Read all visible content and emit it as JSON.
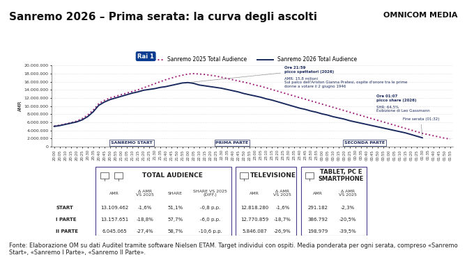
{
  "header": {
    "title": "Sanremo 2026 – Prima serata: la curva degli ascolti",
    "brand": "OMNICOM MEDIA"
  },
  "chart_data": {
    "type": "line",
    "logo": "Rai 1",
    "y_label": "AMR",
    "categories": [
      "20:00",
      "20:05",
      "20:10",
      "20:15",
      "20:20",
      "20:25",
      "20:30",
      "20:35",
      "20:40",
      "20:45",
      "20:50",
      "20:55",
      "21:00",
      "21:05",
      "21:10",
      "21:15",
      "21:20",
      "21:25",
      "21:30",
      "21:35",
      "21:40",
      "21:45",
      "21:50",
      "21:55",
      "22:00",
      "22:05",
      "22:10",
      "22:15",
      "22:20",
      "22:25",
      "22:30",
      "22:35",
      "22:40",
      "22:45",
      "22:50",
      "22:55",
      "23:00",
      "23:05",
      "23:10",
      "23:15",
      "23:20",
      "23:25",
      "23:30",
      "23:35",
      "23:40",
      "23:45",
      "23:50",
      "23:55",
      "00:00",
      "00:05",
      "00:10",
      "00:15",
      "00:20",
      "00:25",
      "00:30",
      "00:35",
      "00:40",
      "00:45",
      "00:50",
      "00:55",
      "01:00",
      "01:05",
      "01:10",
      "01:15",
      "01:20",
      "01:25",
      "01:30",
      "01:35",
      "01:40",
      "01:45",
      "01:50",
      "01:55"
    ],
    "series": [
      {
        "name": "Sanremo 2025 Total Audience",
        "color": "#a0207a",
        "line_style": "dotted",
        "values": [
          5100000,
          5300000,
          5600000,
          5900000,
          6300000,
          6900000,
          7800000,
          9000000,
          10600000,
          11400000,
          12000000,
          12400000,
          12800000,
          13200000,
          13600000,
          14000000,
          14500000,
          15000000,
          15500000,
          16000000,
          16500000,
          16900000,
          17300000,
          17600000,
          17900000,
          18000000,
          17900000,
          17800000,
          17600000,
          17400000,
          17100000,
          16800000,
          16500000,
          16200000,
          15900000,
          15600000,
          15200000,
          14900000,
          14500000,
          14100000,
          13700000,
          13300000,
          12900000,
          12500000,
          12100000,
          11700000,
          11300000,
          10900000,
          10500000,
          10100000,
          9700000,
          9300000,
          8900000,
          8500000,
          8100000,
          7700000,
          7300000,
          6900000,
          6500000,
          6100000,
          5700000,
          5300000,
          4900000,
          4500000,
          4100000,
          3700000,
          3300000,
          3000000,
          2700000,
          2400000,
          2100000,
          1900000
        ]
      },
      {
        "name": "Sanremo 2026 Total Audience",
        "color": "#1b2a5e",
        "line_style": "solid",
        "values": [
          5000000,
          5200000,
          5500000,
          5800000,
          6100000,
          6600000,
          7400000,
          8600000,
          10200000,
          11000000,
          11600000,
          12000000,
          12400000,
          12800000,
          13200000,
          13500000,
          13900000,
          14100000,
          14300000,
          14600000,
          14800000,
          15100000,
          15400000,
          15700000,
          15800000,
          15600000,
          15200000,
          15000000,
          14800000,
          14600000,
          14400000,
          14100000,
          13800000,
          13500000,
          13100000,
          12800000,
          12500000,
          12200000,
          11800000,
          11500000,
          11100000,
          10700000,
          10300000,
          9900000,
          9500000,
          9200000,
          8800000,
          8500000,
          8100000,
          7800000,
          7400000,
          7100000,
          6800000,
          6400000,
          6100000,
          5800000,
          5500000,
          5200000,
          4900000,
          4600000,
          4300000,
          4000000,
          3700000,
          3400000,
          3000000,
          2600000,
          2200000,
          null,
          null,
          null,
          null,
          null
        ]
      }
    ],
    "ylim": [
      0,
      20000000
    ],
    "yticks": [
      0,
      {
        "value": 2000000,
        "label": "2.000.000"
      },
      {
        "value": 4000000,
        "label": "4.000.000"
      },
      {
        "value": 6000000,
        "label": "6.000.000"
      },
      {
        "value": 8000000,
        "label": "8.000.000"
      },
      {
        "value": 10000000,
        "label": "10.000.000"
      },
      {
        "value": 12000000,
        "label": "12.000.000"
      },
      {
        "value": 14000000,
        "label": "14.000.000"
      },
      {
        "value": 16000000,
        "label": "16.000.000"
      },
      {
        "value": 18000000,
        "label": "18.000.000"
      },
      {
        "value": 20000000,
        "label": "20.000.000"
      }
    ],
    "grid": true,
    "legend": "upper center",
    "annotations": [
      "Ore 21:59\npicco spettatori (2026)",
      "AMR: 15,8 milioni\nSul palco dell'Ariston Gianna Pratesi, ospite d'onore tra le prime\ndonne a votare il 2 giugno 1946",
      "Ore 01:07\npicco share (2026)",
      "SHR: 64,5%\nEsibizione di Leo Gassmann",
      "Fine serata (01:32)"
    ],
    "sections": [
      "SANREMO START",
      "PRIMA PARTE",
      "SECONDA PARTE"
    ]
  },
  "table": {
    "row_labels": [
      "START",
      "I PARTE",
      "II PARTE"
    ],
    "panels": [
      {
        "title": "TOTAL AUDIENCE",
        "columns": [
          "AMR",
          "Δ AMR\nVS 2025",
          "SHARE",
          "SHARE VS 2025\n(DIFF.)"
        ],
        "rows": [
          [
            "13.109.462",
            "-1,6%",
            "51,1%",
            "-0,8 p.p."
          ],
          [
            "13.157.651",
            "-18,8%",
            "57,7%",
            "-6,0 p.p."
          ],
          [
            "6.045.065",
            "-27,4%",
            "58,7%",
            "-10,6 p.p."
          ]
        ]
      },
      {
        "title": "TELEVISIONE",
        "columns": [
          "AMR",
          "Δ AMR\nVS 2025"
        ],
        "rows": [
          [
            "12.818.280",
            "-1,6%"
          ],
          [
            "12.770.859",
            "-18,7%"
          ],
          [
            "5.846.087",
            "-26,9%"
          ]
        ]
      },
      {
        "title": "TABLET, PC E\nSMARTPHONE",
        "columns": [
          "AMR",
          "Δ AMR\nVS 2025"
        ],
        "rows": [
          [
            "291.182",
            "-2,3%"
          ],
          [
            "386.792",
            "-20,5%"
          ],
          [
            "198.979",
            "-39,5%"
          ]
        ]
      }
    ]
  },
  "footer": "Fonte: Elaborazione OM su dati Auditel tramite software Nielsen ETAM. Target individui con ospiti. Media ponderata per ogni serata, compreso «Sanremo Start», «Sanremo I Parte», «Sanremo II Parte»."
}
